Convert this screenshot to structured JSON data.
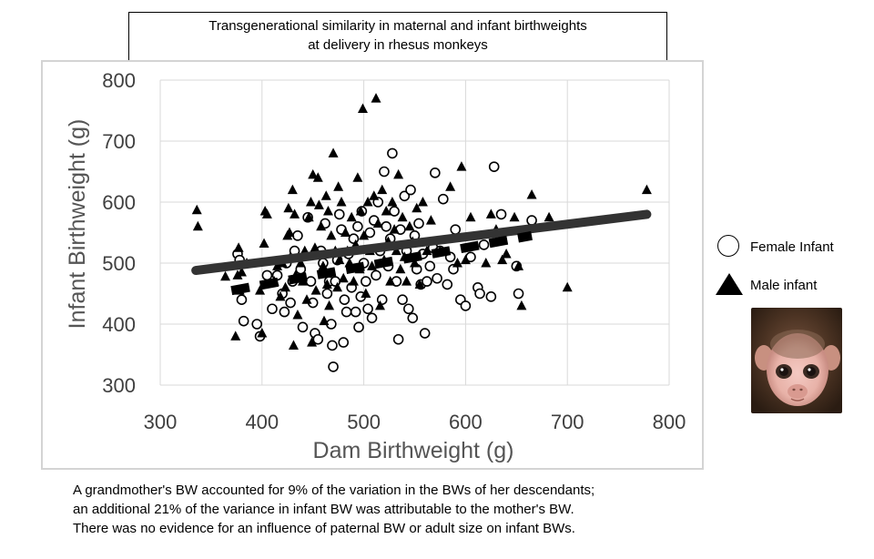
{
  "title": {
    "line1": "Transgenerational similarity in maternal and infant birthweights",
    "line2": "at delivery in rhesus monkeys"
  },
  "legend": {
    "female": "Female Infant",
    "male": "Male infant"
  },
  "caption": {
    "line1": "A grandmother's BW accounted for 9% of the variation in the BWs of her descendants;",
    "line2": "an additional 21% of the variance in infant BW was attributable to the mother's BW.",
    "line3": "There was no evidence for an influence of paternal BW or adult size on infant BWs."
  },
  "chart_data": {
    "type": "scatter",
    "xlabel": "Dam Birthweight (g)",
    "ylabel": "Infant Birthweight (g)",
    "xlim": [
      300,
      800
    ],
    "ylim": [
      300,
      800
    ],
    "xticks": [
      300,
      400,
      500,
      600,
      700,
      800
    ],
    "yticks": [
      300,
      400,
      500,
      600,
      700,
      800
    ],
    "grid": true,
    "legend_position": "right",
    "colors": {
      "line": "#333333",
      "dashed": "#000000",
      "grid": "#d9d9d9",
      "tick": "#404040"
    },
    "series": [
      {
        "name": "Female Infant",
        "marker": "circle",
        "points": [
          [
            376,
            515
          ],
          [
            378,
            505
          ],
          [
            380,
            440
          ],
          [
            382,
            405
          ],
          [
            395,
            400
          ],
          [
            398,
            380
          ],
          [
            405,
            480
          ],
          [
            410,
            425
          ],
          [
            415,
            480
          ],
          [
            420,
            450
          ],
          [
            422,
            420
          ],
          [
            424,
            500
          ],
          [
            428,
            435
          ],
          [
            430,
            470
          ],
          [
            432,
            520
          ],
          [
            435,
            545
          ],
          [
            438,
            490
          ],
          [
            440,
            395
          ],
          [
            445,
            575
          ],
          [
            448,
            470
          ],
          [
            450,
            435
          ],
          [
            452,
            385
          ],
          [
            455,
            375
          ],
          [
            458,
            520
          ],
          [
            460,
            500
          ],
          [
            462,
            565
          ],
          [
            464,
            450
          ],
          [
            466,
            470
          ],
          [
            468,
            400
          ],
          [
            469,
            365
          ],
          [
            470,
            330
          ],
          [
            472,
            470
          ],
          [
            474,
            505
          ],
          [
            476,
            580
          ],
          [
            478,
            555
          ],
          [
            480,
            370
          ],
          [
            481,
            440
          ],
          [
            483,
            420
          ],
          [
            485,
            515
          ],
          [
            488,
            460
          ],
          [
            490,
            540
          ],
          [
            492,
            420
          ],
          [
            494,
            560
          ],
          [
            495,
            395
          ],
          [
            497,
            445
          ],
          [
            498,
            585
          ],
          [
            500,
            500
          ],
          [
            502,
            470
          ],
          [
            504,
            425
          ],
          [
            506,
            550
          ],
          [
            508,
            410
          ],
          [
            510,
            570
          ],
          [
            512,
            480
          ],
          [
            514,
            600
          ],
          [
            516,
            520
          ],
          [
            518,
            440
          ],
          [
            520,
            650
          ],
          [
            522,
            560
          ],
          [
            524,
            495
          ],
          [
            526,
            540
          ],
          [
            528,
            680
          ],
          [
            530,
            585
          ],
          [
            532,
            470
          ],
          [
            534,
            375
          ],
          [
            536,
            555
          ],
          [
            538,
            440
          ],
          [
            540,
            610
          ],
          [
            542,
            520
          ],
          [
            544,
            425
          ],
          [
            546,
            620
          ],
          [
            548,
            410
          ],
          [
            550,
            545
          ],
          [
            552,
            490
          ],
          [
            554,
            565
          ],
          [
            556,
            465
          ],
          [
            558,
            515
          ],
          [
            560,
            385
          ],
          [
            562,
            470
          ],
          [
            565,
            495
          ],
          [
            568,
            525
          ],
          [
            570,
            648
          ],
          [
            572,
            475
          ],
          [
            575,
            520
          ],
          [
            578,
            605
          ],
          [
            582,
            465
          ],
          [
            585,
            510
          ],
          [
            588,
            490
          ],
          [
            590,
            555
          ],
          [
            595,
            440
          ],
          [
            600,
            430
          ],
          [
            605,
            510
          ],
          [
            612,
            460
          ],
          [
            614,
            450
          ],
          [
            618,
            530
          ],
          [
            625,
            445
          ],
          [
            628,
            658
          ],
          [
            635,
            580
          ],
          [
            650,
            495
          ],
          [
            652,
            450
          ],
          [
            665,
            570
          ]
        ]
      },
      {
        "name": "Male infant",
        "marker": "triangle",
        "points": [
          [
            336,
            587
          ],
          [
            337,
            560
          ],
          [
            364,
            478
          ],
          [
            374,
            380
          ],
          [
            376,
            480
          ],
          [
            377,
            525
          ],
          [
            378,
            455
          ],
          [
            380,
            485
          ],
          [
            385,
            500
          ],
          [
            398,
            455
          ],
          [
            400,
            385
          ],
          [
            402,
            532
          ],
          [
            403,
            585
          ],
          [
            405,
            580
          ],
          [
            412,
            470
          ],
          [
            415,
            495
          ],
          [
            418,
            445
          ],
          [
            420,
            500
          ],
          [
            423,
            460
          ],
          [
            425,
            545
          ],
          [
            426,
            590
          ],
          [
            427,
            550
          ],
          [
            428,
            510
          ],
          [
            430,
            620
          ],
          [
            431,
            365
          ],
          [
            432,
            580
          ],
          [
            433,
            480
          ],
          [
            435,
            415
          ],
          [
            438,
            500
          ],
          [
            440,
            470
          ],
          [
            442,
            520
          ],
          [
            444,
            440
          ],
          [
            446,
            575
          ],
          [
            448,
            600
          ],
          [
            449,
            370
          ],
          [
            450,
            645
          ],
          [
            452,
            525
          ],
          [
            453,
            455
          ],
          [
            455,
            640
          ],
          [
            456,
            595
          ],
          [
            458,
            560
          ],
          [
            460,
            495
          ],
          [
            461,
            405
          ],
          [
            463,
            610
          ],
          [
            464,
            465
          ],
          [
            465,
            585
          ],
          [
            466,
            430
          ],
          [
            468,
            545
          ],
          [
            470,
            680
          ],
          [
            472,
            520
          ],
          [
            474,
            460
          ],
          [
            475,
            625
          ],
          [
            476,
            505
          ],
          [
            478,
            600
          ],
          [
            480,
            475
          ],
          [
            482,
            550
          ],
          [
            484,
            520
          ],
          [
            486,
            500
          ],
          [
            488,
            575
          ],
          [
            490,
            470
          ],
          [
            492,
            530
          ],
          [
            494,
            640
          ],
          [
            496,
            490
          ],
          [
            497,
            585
          ],
          [
            499,
            753
          ],
          [
            500,
            545
          ],
          [
            502,
            450
          ],
          [
            504,
            600
          ],
          [
            506,
            520
          ],
          [
            508,
            495
          ],
          [
            510,
            610
          ],
          [
            512,
            770
          ],
          [
            514,
            565
          ],
          [
            516,
            430
          ],
          [
            518,
            620
          ],
          [
            520,
            505
          ],
          [
            522,
            585
          ],
          [
            524,
            535
          ],
          [
            526,
            470
          ],
          [
            528,
            600
          ],
          [
            530,
            555
          ],
          [
            532,
            520
          ],
          [
            534,
            645
          ],
          [
            536,
            490
          ],
          [
            538,
            575
          ],
          [
            540,
            510
          ],
          [
            542,
            470
          ],
          [
            545,
            560
          ],
          [
            548,
            535
          ],
          [
            550,
            500
          ],
          [
            552,
            590
          ],
          [
            555,
            465
          ],
          [
            558,
            600
          ],
          [
            562,
            520
          ],
          [
            566,
            570
          ],
          [
            575,
            520
          ],
          [
            585,
            625
          ],
          [
            592,
            500
          ],
          [
            596,
            658
          ],
          [
            600,
            505
          ],
          [
            605,
            575
          ],
          [
            620,
            500
          ],
          [
            625,
            580
          ],
          [
            630,
            555
          ],
          [
            636,
            505
          ],
          [
            640,
            515
          ],
          [
            648,
            575
          ],
          [
            652,
            495
          ],
          [
            655,
            430
          ],
          [
            665,
            612
          ],
          [
            682,
            575
          ],
          [
            700,
            460
          ],
          [
            778,
            620
          ]
        ]
      }
    ],
    "trendlines": [
      {
        "style": "solid",
        "from": [
          335,
          488
        ],
        "to": [
          778,
          580
        ]
      },
      {
        "style": "dashed",
        "from": [
          370,
          455
        ],
        "to": [
          665,
          545
        ]
      }
    ]
  }
}
